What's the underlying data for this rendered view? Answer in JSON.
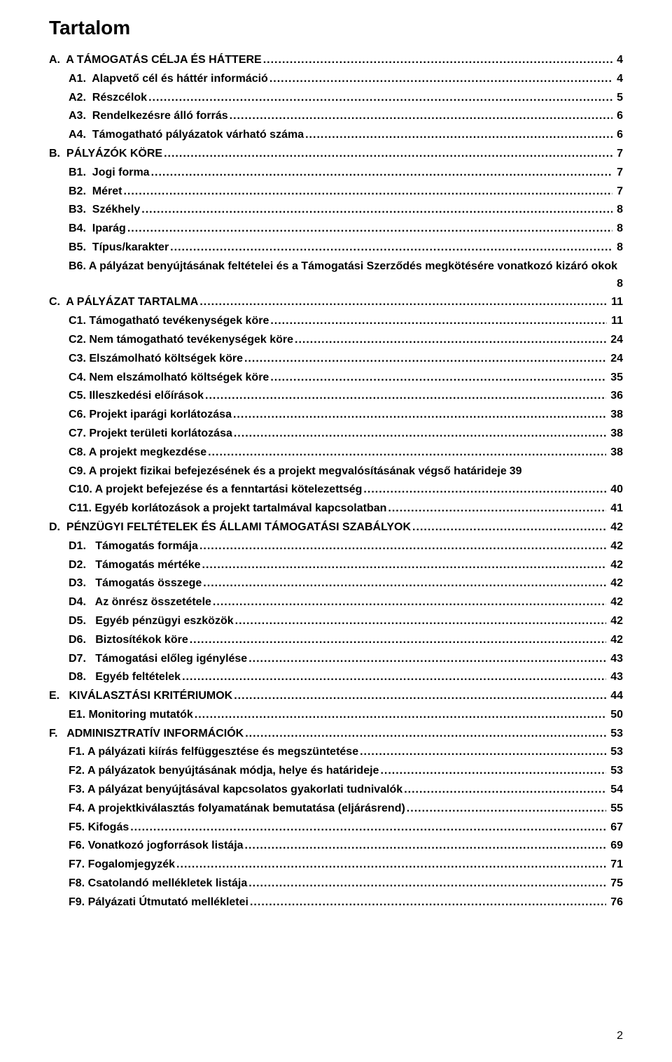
{
  "title": "Tartalom",
  "footer_page": "2",
  "toc": [
    {
      "indent": 0,
      "label": "A.  A TÁMOGATÁS CÉLJA ÉS HÁTTERE",
      "page": "4"
    },
    {
      "indent": 1,
      "label": "A1.  Alapvető cél és háttér információ",
      "page": "4"
    },
    {
      "indent": 1,
      "label": "A2.  Részcélok",
      "page": "5"
    },
    {
      "indent": 1,
      "label": "A3.  Rendelkezésre álló forrás",
      "page": "6"
    },
    {
      "indent": 1,
      "label": "A4.  Támogatható pályázatok várható száma",
      "page": "6"
    },
    {
      "indent": 0,
      "label": "B.  PÁLYÁZÓK KÖRE",
      "page": "7"
    },
    {
      "indent": 1,
      "label": "B1.  Jogi forma",
      "page": "7"
    },
    {
      "indent": 1,
      "label": "B2.  Méret",
      "page": "7"
    },
    {
      "indent": 1,
      "label": "B3.  Székhely",
      "page": "8"
    },
    {
      "indent": 1,
      "label": "B4.  Iparág",
      "page": "8"
    },
    {
      "indent": 1,
      "label": "B5.  Típus/karakter",
      "page": "8"
    },
    {
      "indent": 1,
      "label": "B6. A pályázat benyújtásának feltételei és a Támogatási Szerződés megkötésére vonatkozó kizáró okok",
      "page": "8",
      "wrap": true
    },
    {
      "indent": 0,
      "label": "C.  A PÁLYÁZAT TARTALMA",
      "page": "11"
    },
    {
      "indent": 1,
      "label": "C1. Támogatható tevékenységek köre",
      "page": "11"
    },
    {
      "indent": 1,
      "label": "C2. Nem támogatható tevékenységek köre",
      "page": "24"
    },
    {
      "indent": 1,
      "label": "C3. Elszámolható költségek köre",
      "page": "24"
    },
    {
      "indent": 1,
      "label": "C4. Nem elszámolható költségek köre",
      "page": "35"
    },
    {
      "indent": 1,
      "label": "C5. Illeszkedési előírások",
      "page": "36"
    },
    {
      "indent": 1,
      "label": "C6. Projekt iparági korlátozása",
      "page": "38"
    },
    {
      "indent": 1,
      "label": "C7. Projekt területi korlátozása",
      "page": "38"
    },
    {
      "indent": 1,
      "label": "C8. A projekt megkezdése",
      "page": "38"
    },
    {
      "indent": 1,
      "label": "C9. A projekt fizikai befejezésének és a projekt megvalósításának végső határideje",
      "page": "39",
      "nolead": true
    },
    {
      "indent": 1,
      "label": "C10. A projekt befejezése és a fenntartási kötelezettség",
      "page": "40"
    },
    {
      "indent": 1,
      "label": "C11. Egyéb korlátozások a projekt tartalmával kapcsolatban",
      "page": "41"
    },
    {
      "indent": 0,
      "label": "D.  PÉNZÜGYI FELTÉTELEK ÉS ÁLLAMI TÁMOGATÁSI SZABÁLYOK",
      "page": "42"
    },
    {
      "indent": 1,
      "label": "D1.   Támogatás formája",
      "page": "42"
    },
    {
      "indent": 1,
      "label": "D2.   Támogatás mértéke",
      "page": "42"
    },
    {
      "indent": 1,
      "label": "D3.   Támogatás összege",
      "page": "42"
    },
    {
      "indent": 1,
      "label": "D4.   Az önrész összetétele",
      "page": "42"
    },
    {
      "indent": 1,
      "label": "D5.   Egyéb pénzügyi eszközök",
      "page": "42"
    },
    {
      "indent": 1,
      "label": "D6.   Biztosítékok köre",
      "page": "42"
    },
    {
      "indent": 1,
      "label": "D7.   Támogatási előleg igénylése",
      "page": "43"
    },
    {
      "indent": 1,
      "label": "D8.   Egyéb feltételek",
      "page": "43"
    },
    {
      "indent": 0,
      "label": "E.   KIVÁLASZTÁSI KRITÉRIUMOK",
      "page": "44"
    },
    {
      "indent": 1,
      "label": "E1. Monitoring mutatók",
      "page": "50"
    },
    {
      "indent": 0,
      "label": "F.   ADMINISZTRATÍV INFORMÁCIÓK",
      "page": "53"
    },
    {
      "indent": 1,
      "label": "F1. A pályázati kiírás felfüggesztése és megszüntetése",
      "page": "53"
    },
    {
      "indent": 1,
      "label": "F2. A pályázatok benyújtásának módja, helye és határideje",
      "page": "53"
    },
    {
      "indent": 1,
      "label": "F3. A pályázat benyújtásával kapcsolatos gyakorlati tudnivalók",
      "page": "54"
    },
    {
      "indent": 1,
      "label": "F4. A projektkiválasztás folyamatának bemutatása (eljárásrend)",
      "page": "55"
    },
    {
      "indent": 1,
      "label": "F5. Kifogás",
      "page": "67"
    },
    {
      "indent": 1,
      "label": "F6. Vonatkozó jogforrások listája",
      "page": "69"
    },
    {
      "indent": 1,
      "label": "F7. Fogalomjegyzék",
      "page": "71"
    },
    {
      "indent": 1,
      "label": "F8. Csatolandó mellékletek listája",
      "page": "75"
    },
    {
      "indent": 1,
      "label": "F9. Pályázati Útmutató mellékletei",
      "page": "76"
    }
  ]
}
